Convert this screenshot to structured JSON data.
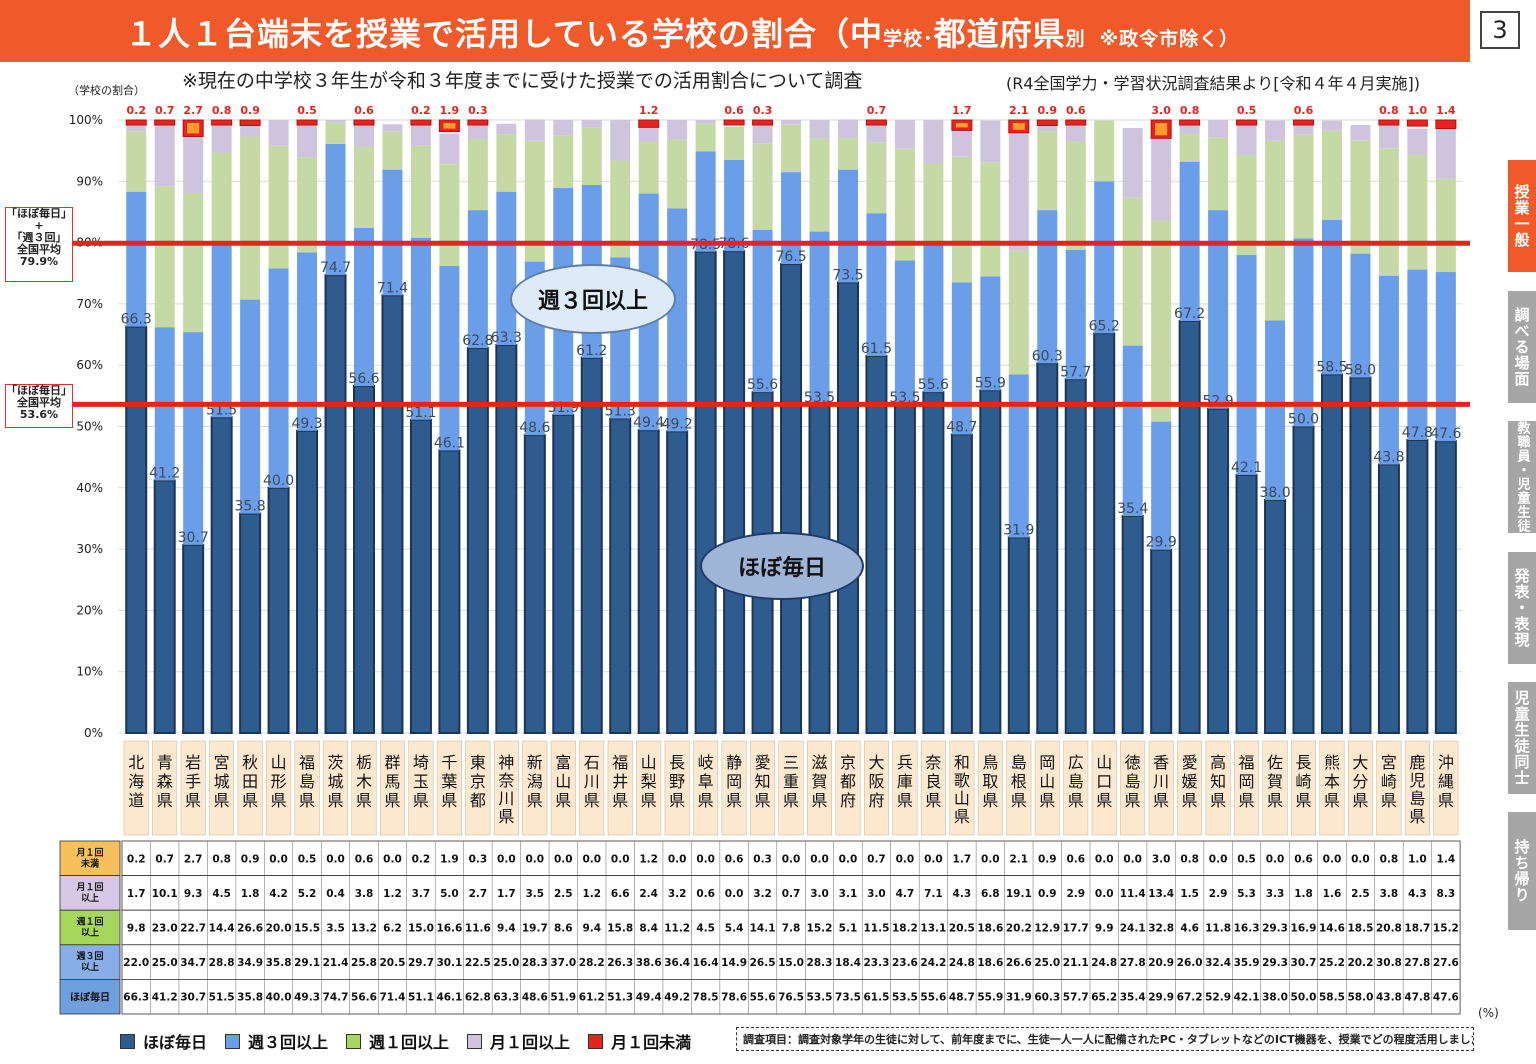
{
  "header": {
    "title_main": "１人１台端末を授業で活用している学校の割合（",
    "title_mid": "中",
    "title_small1": "学校･",
    "title_mid2": "都道府県",
    "title_small2": "別",
    "title_note": "※政令市除く）",
    "page_number": "3"
  },
  "subtitle": "※現在の中学校３年生が令和３年度までに受けた授業での活用割合について調査",
  "source": "(R4全国学力・学習状況調査結果より[令和４年４月実施])",
  "y_axis_label": "（学校の割合）",
  "unit_label": "(%)",
  "averages": {
    "weekly3": {
      "label_lines": [
        "「ほぼ毎日」",
        "+",
        "「週３回」",
        "全国平均",
        "79.9%"
      ],
      "value": 79.9
    },
    "daily": {
      "label_lines": [
        "「ほぼ毎日」",
        "全国平均",
        "53.6%"
      ],
      "value": 53.6
    }
  },
  "callouts": {
    "weekly3": "週３回以上",
    "daily": "ほぼ毎日"
  },
  "side_tabs": [
    "授業一般",
    "調べる場面",
    "教職員・児童生徒",
    "発表・表現",
    "児童生徒同士",
    "持ち帰り"
  ],
  "legend": [
    "ほぼ毎日",
    "週３回以上",
    "週１回以上",
    "月１回以上",
    "月１回未満"
  ],
  "survey_note": "調査項目：調査対象学年の生徒に対して、前年度までに、生徒一人一人に配備されたPC・タブレットなどのICT機器を、授業でどの程度活用しましたか",
  "table_row_labels": [
    [
      "月１回",
      "未満"
    ],
    [
      "月１回",
      "以上"
    ],
    [
      "週１回",
      "以上"
    ],
    [
      "週３回",
      "以上"
    ],
    [
      "ほぼ毎日"
    ]
  ],
  "colors": {
    "daily": "#2e5c8f",
    "weekly3": "#6b9ee8",
    "weekly1": "#c4d9a3",
    "monthly1": "#cfc4dd",
    "lessmonthly": "#e8231f",
    "avg_line": "#e8231f",
    "pref_label_bg": "#fbe8cf",
    "row_less": "#f6c15c",
    "row_m1": "#d6c8e4",
    "row_w1": "#a6d65a",
    "row_w3": "#87aee6",
    "row_daily": "#6f9fdc"
  },
  "chart_data": {
    "type": "bar",
    "stacked": true,
    "ylim": [
      0,
      100
    ],
    "yticks": [
      "0%",
      "10%",
      "20%",
      "30%",
      "40%",
      "50%",
      "60%",
      "70%",
      "80%",
      "90%",
      "100%"
    ],
    "categories": [
      "北海道",
      "青森県",
      "岩手県",
      "宮城県",
      "秋田県",
      "山形県",
      "福島県",
      "茨城県",
      "栃木県",
      "群馬県",
      "埼玉県",
      "千葉県",
      "東京都",
      "神奈川県",
      "新潟県",
      "富山県",
      "石川県",
      "福井県",
      "山梨県",
      "長野県",
      "岐阜県",
      "静岡県",
      "愛知県",
      "三重県",
      "滋賀県",
      "京都府",
      "大阪府",
      "兵庫県",
      "奈良県",
      "和歌山県",
      "鳥取県",
      "島根県",
      "岡山県",
      "広島県",
      "山口県",
      "徳島県",
      "香川県",
      "愛媛県",
      "高知県",
      "福岡県",
      "佐賀県",
      "長崎県",
      "熊本県",
      "大分県",
      "宮崎県",
      "鹿児島県",
      "沖縄県"
    ],
    "series": [
      {
        "name": "ほぼ毎日",
        "values": [
          66.3,
          41.2,
          30.7,
          51.5,
          35.8,
          40.0,
          49.3,
          74.7,
          56.6,
          71.4,
          51.1,
          46.1,
          62.8,
          63.3,
          48.6,
          51.9,
          61.2,
          51.3,
          49.4,
          49.2,
          78.5,
          78.6,
          55.6,
          76.5,
          53.5,
          73.5,
          61.5,
          53.5,
          55.6,
          48.7,
          55.9,
          31.9,
          60.3,
          57.7,
          65.2,
          35.4,
          29.9,
          67.2,
          52.9,
          42.1,
          38.0,
          50.0,
          58.5,
          58.0,
          43.8,
          47.8,
          47.6
        ]
      },
      {
        "name": "週３回以上",
        "values": [
          22.0,
          25.0,
          34.7,
          28.8,
          34.9,
          35.8,
          29.1,
          21.4,
          25.8,
          20.5,
          29.7,
          30.1,
          22.5,
          25.0,
          28.3,
          37.0,
          28.2,
          26.3,
          38.6,
          36.4,
          16.4,
          14.9,
          26.5,
          15.0,
          28.3,
          18.4,
          23.3,
          23.6,
          24.2,
          24.8,
          18.6,
          26.6,
          25.0,
          21.1,
          24.8,
          27.8,
          20.9,
          26.0,
          32.4,
          35.9,
          29.3,
          30.7,
          25.2,
          20.2,
          30.8,
          27.8,
          27.6
        ]
      },
      {
        "name": "週１回以上",
        "values": [
          9.8,
          23.0,
          22.7,
          14.4,
          26.6,
          20.0,
          15.5,
          3.5,
          13.2,
          6.2,
          15.0,
          16.6,
          11.6,
          9.4,
          19.7,
          8.6,
          9.4,
          15.8,
          8.4,
          11.2,
          4.5,
          5.4,
          14.1,
          7.8,
          15.2,
          5.1,
          11.5,
          18.2,
          13.1,
          20.5,
          18.6,
          20.2,
          12.9,
          17.7,
          9.9,
          24.1,
          32.8,
          4.6,
          11.8,
          16.3,
          29.3,
          16.9,
          14.6,
          18.5,
          20.8,
          18.7,
          15.2
        ]
      },
      {
        "name": "月１回以上",
        "values": [
          1.7,
          10.1,
          9.3,
          4.5,
          1.8,
          4.2,
          5.2,
          0.4,
          3.8,
          1.2,
          3.7,
          5.0,
          2.7,
          1.7,
          3.5,
          2.5,
          1.2,
          6.6,
          2.4,
          3.2,
          0.6,
          0.0,
          3.2,
          0.7,
          3.0,
          3.1,
          3.0,
          4.7,
          7.1,
          4.3,
          6.8,
          19.1,
          0.9,
          2.9,
          0.0,
          11.4,
          13.4,
          1.5,
          2.9,
          5.3,
          3.3,
          1.8,
          1.6,
          2.5,
          3.8,
          4.3,
          8.3
        ]
      },
      {
        "name": "月１回未満",
        "values": [
          0.2,
          0.7,
          2.7,
          0.8,
          0.9,
          0.0,
          0.5,
          0.0,
          0.6,
          0.0,
          0.2,
          1.9,
          0.3,
          0.0,
          0.0,
          0.0,
          0.0,
          0.0,
          1.2,
          0.0,
          0.0,
          0.6,
          0.3,
          0.0,
          0.0,
          0.0,
          0.7,
          0.0,
          0.0,
          1.7,
          0.0,
          2.1,
          0.9,
          0.6,
          0.0,
          0.0,
          3.0,
          0.8,
          0.0,
          0.5,
          0.0,
          0.6,
          0.0,
          0.0,
          0.8,
          1.0,
          1.4
        ]
      }
    ],
    "top_labels": [
      "0.2",
      "0.7",
      "2.7",
      "0.8",
      "0.9",
      "",
      "0.5",
      "",
      "0.6",
      "",
      "0.2",
      "1.9",
      "0.3",
      "",
      "",
      "",
      "",
      "",
      "1.2",
      "",
      "",
      "0.6",
      "0.3",
      "",
      "",
      "",
      "0.7",
      "",
      "",
      "1.7",
      "",
      "2.1",
      "0.9",
      "0.6",
      "",
      "",
      "3.0",
      "0.8",
      "",
      "0.5",
      "",
      "0.6",
      "",
      "",
      "0.8",
      "1.0",
      "1.4"
    ],
    "reference_lines": [
      79.9,
      53.6
    ]
  }
}
